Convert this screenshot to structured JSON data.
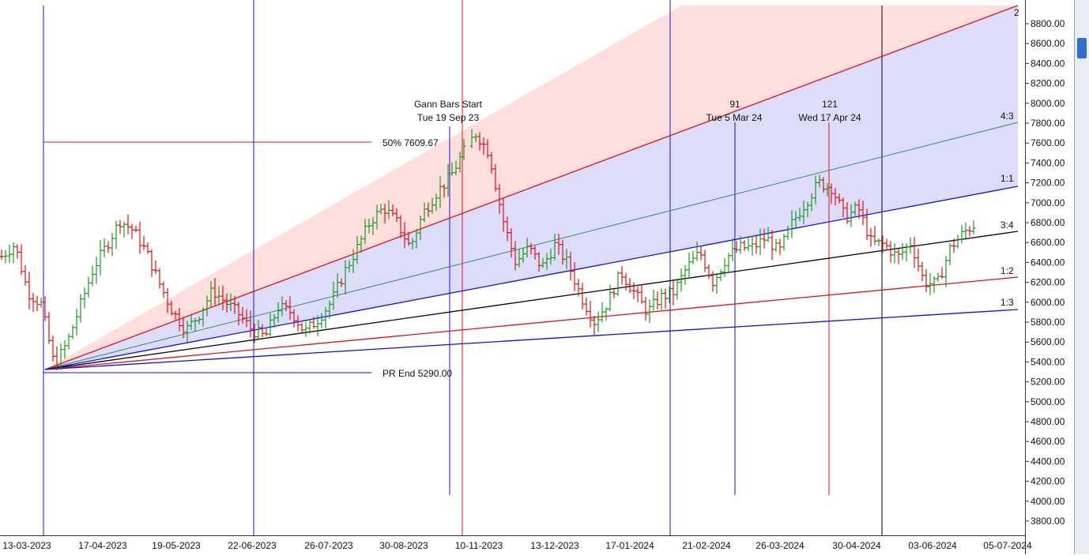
{
  "colors": {
    "bull_bar": "#1a9a1a",
    "bear_bar": "#e01010",
    "blue_line": "#1010e0",
    "red_line": "#e01010",
    "green_line": "#2f8f6f",
    "black_line": "#000000",
    "fan_upper_fill": "#ffdede",
    "fan_lower_fill": "#dedcfb"
  },
  "chart_data": {
    "type": "ohlc",
    "title": "",
    "price_axis": {
      "labels": [
        "8800.00",
        "8600.00",
        "8400.00",
        "8200.00",
        "8000.00",
        "7800.00",
        "7600.00",
        "7400.00",
        "7200.00",
        "7000.00",
        "6800.00",
        "6600.00",
        "6400.00",
        "6200.00",
        "6000.00",
        "5800.00",
        "5600.00",
        "5400.00",
        "5200.00",
        "5000.00",
        "4800.00",
        "4600.00",
        "4400.00",
        "4200.00",
        "4000.00",
        "3800.00"
      ],
      "ylim": [
        3700,
        9000
      ]
    },
    "time_axis": {
      "labels": [
        "13-03-2023",
        "17-04-2023",
        "19-05-2023",
        "22-06-2023",
        "26-07-2023",
        "30-08-2023",
        "10-11-2023",
        "13-12-2023",
        "17-01-2024",
        "21-02-2024",
        "26-03-2024",
        "30-04-2024",
        "03-06-2024",
        "05-07-2024"
      ]
    },
    "price_path": [
      [
        0,
        6460
      ],
      [
        1,
        6580
      ],
      [
        2,
        6100
      ],
      [
        3,
        5980
      ],
      [
        4,
        5360
      ],
      [
        5,
        5600
      ],
      [
        6,
        5980
      ],
      [
        7,
        6350
      ],
      [
        8,
        6580
      ],
      [
        9,
        6820
      ],
      [
        10,
        6720
      ],
      [
        11,
        6500
      ],
      [
        12,
        6180
      ],
      [
        13,
        5900
      ],
      [
        14,
        5720
      ],
      [
        15,
        5880
      ],
      [
        16,
        6120
      ],
      [
        17,
        6000
      ],
      [
        18,
        5880
      ],
      [
        19,
        5720
      ],
      [
        20,
        5650
      ],
      [
        21,
        5950
      ],
      [
        22,
        5900
      ],
      [
        23,
        5700
      ],
      [
        24,
        5830
      ],
      [
        25,
        6000
      ],
      [
        26,
        6300
      ],
      [
        27,
        6550
      ],
      [
        28,
        6820
      ],
      [
        29,
        6950
      ],
      [
        30,
        6800
      ],
      [
        31,
        6550
      ],
      [
        32,
        6900
      ],
      [
        33,
        7100
      ],
      [
        34,
        7250
      ],
      [
        35,
        7500
      ],
      [
        36,
        7700
      ],
      [
        37,
        7500
      ],
      [
        38,
        6850
      ],
      [
        39,
        6400
      ],
      [
        40,
        6550
      ],
      [
        41,
        6350
      ],
      [
        42,
        6580
      ],
      [
        43,
        6380
      ],
      [
        44,
        6050
      ],
      [
        45,
        5800
      ],
      [
        46,
        6000
      ],
      [
        47,
        6300
      ],
      [
        48,
        6100
      ],
      [
        49,
        5900
      ],
      [
        50,
        6050
      ],
      [
        51,
        6100
      ],
      [
        52,
        6350
      ],
      [
        53,
        6500
      ],
      [
        54,
        6200
      ],
      [
        55,
        6450
      ],
      [
        56,
        6550
      ],
      [
        57,
        6550
      ],
      [
        58,
        6650
      ],
      [
        59,
        6500
      ],
      [
        60,
        6800
      ],
      [
        61,
        7000
      ],
      [
        62,
        7200
      ],
      [
        63,
        7150
      ],
      [
        64,
        6850
      ],
      [
        65,
        6950
      ],
      [
        66,
        6600
      ],
      [
        67,
        6580
      ],
      [
        68,
        6450
      ],
      [
        69,
        6600
      ],
      [
        70,
        6200
      ],
      [
        71,
        6180
      ],
      [
        72,
        6550
      ],
      [
        73,
        6700
      ],
      [
        74,
        6800
      ]
    ],
    "gann_fan": {
      "origin_price": 5290.0,
      "ratio_labels": [
        "2",
        "4:3",
        "1:1",
        "3:4",
        "1:2",
        "1:3"
      ]
    },
    "annotations": {
      "gann_bars_start_title": "Gann Bars Start",
      "gann_bars_start_date": "Tue 19 Sep 23",
      "level_50_text": "50% 7609.67",
      "pr_end_text": "PR End 5290.00",
      "cycle_91_number": "91",
      "cycle_91_date": "Tue 5 Mar 24",
      "cycle_121_number": "121",
      "cycle_121_date": "Wed 17 Apr 24"
    }
  }
}
